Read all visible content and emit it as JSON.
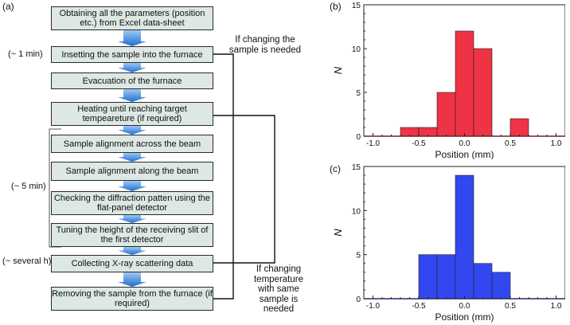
{
  "panel_labels": {
    "a": "(a)",
    "b": "(b)",
    "c": "(c)"
  },
  "flowchart": {
    "steps": [
      "Obtaining all the parameters (position etc.) from Excel data-sheet",
      "Insetting the sample into the furnace",
      "Evacuation of the furnace",
      "Heating until reaching target tempeareture (if required)",
      "Sample alignment across the beam",
      "Sample alignment along the beam",
      "Checking the diffraction patten using the flat-panel detector",
      "Tuning the height of the receiving slit of the first detector",
      "Collecting X-ray scattering data",
      "Removing the sample from the furnace (if required)"
    ],
    "times": [
      "(~ 1 min)",
      "(~ 5 min)",
      "(~ several h)"
    ],
    "loop_notes": [
      "If changing the sample is needed",
      "If changing temperature with same sample is needed"
    ]
  },
  "chart_data": [
    {
      "panel": "(b)",
      "type": "bar",
      "title": "",
      "xlabel": "Position (mm)",
      "ylabel": "N",
      "xlim": [
        -1.1,
        1.1
      ],
      "ylim": [
        0,
        15
      ],
      "xticks": [
        "-1.0",
        "-0.5",
        "0.0",
        "0.5",
        "1.0"
      ],
      "yticks": [
        "0",
        "5",
        "10",
        "15"
      ],
      "bin_edges": [
        -0.7,
        -0.5,
        -0.3,
        -0.1,
        0.1,
        0.3,
        0.5,
        0.7
      ],
      "counts": [
        1,
        1,
        5,
        12,
        10,
        0,
        2
      ],
      "color": "#ee3344"
    },
    {
      "panel": "(c)",
      "type": "bar",
      "title": "",
      "xlabel": "Position (mm)",
      "ylabel": "N",
      "xlim": [
        -1.1,
        1.1
      ],
      "ylim": [
        0,
        15
      ],
      "xticks": [
        "-1.0",
        "-0.5",
        "0.0",
        "0.5",
        "1.0"
      ],
      "yticks": [
        "0",
        "5",
        "10",
        "15"
      ],
      "bin_edges": [
        -0.5,
        -0.3,
        -0.1,
        0.1,
        0.3,
        0.5
      ],
      "counts": [
        5,
        5,
        14,
        4,
        3
      ],
      "color": "#3347f0"
    }
  ]
}
